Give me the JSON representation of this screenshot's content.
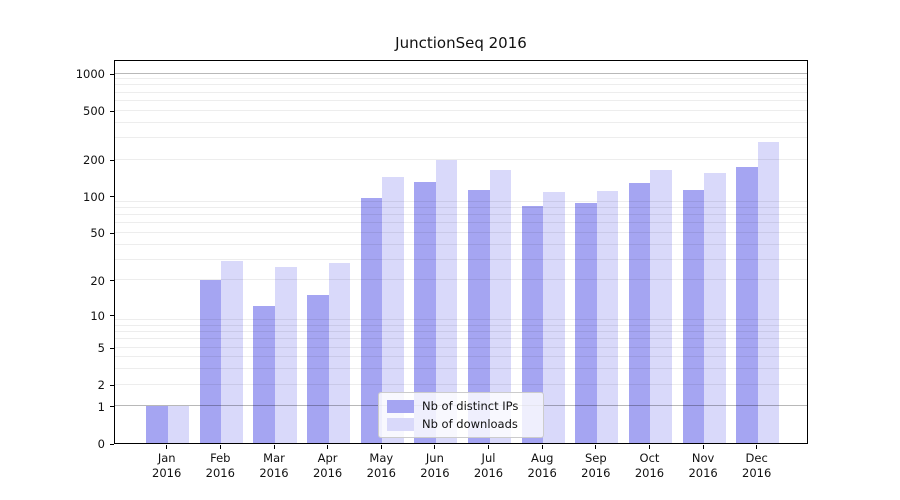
{
  "chart_data": {
    "type": "bar",
    "title": "JunctionSeq 2016",
    "scale": "log10(1+v)",
    "ylim": [
      0,
      1000
    ],
    "y_ticks": [
      0,
      1,
      2,
      5,
      10,
      20,
      50,
      100,
      200,
      500,
      1000
    ],
    "grid": true,
    "legend_position": "inside-bottom-center",
    "categories": [
      "Jan",
      "Feb",
      "Mar",
      "Apr",
      "May",
      "Jun",
      "Jul",
      "Aug",
      "Sep",
      "Oct",
      "Nov",
      "Dec"
    ],
    "year_label": "2016",
    "series": [
      {
        "name": "Nb of distinct IPs",
        "color": "#a5a5f2",
        "values": [
          1,
          20,
          12,
          15,
          97,
          131,
          112,
          83,
          87,
          127,
          112,
          171
        ]
      },
      {
        "name": "Nb of downloads",
        "color": "#d9d9fa",
        "values": [
          1,
          29,
          26,
          28,
          142,
          195,
          162,
          108,
          110,
          164,
          153,
          273
        ]
      }
    ]
  }
}
